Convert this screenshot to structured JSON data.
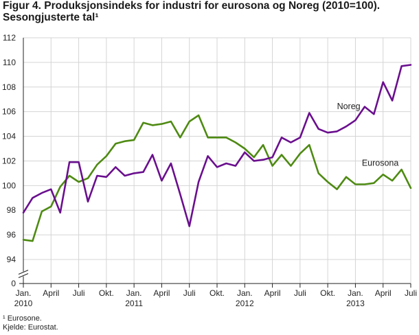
{
  "chart_data": {
    "type": "line",
    "title": "Figur 4. Produksjonsindeks for industri for eurosona og Noreg (2010=100).",
    "subtitle": "Sesongjusterte tal¹",
    "xlabel": "",
    "ylabel": "",
    "ylim": [
      0,
      112
    ],
    "axis_break": [
      0,
      94
    ],
    "yticks": [
      0,
      94,
      96,
      98,
      100,
      102,
      104,
      106,
      108,
      110,
      112
    ],
    "grid": true,
    "x_tick_labels": [
      {
        "label": "Jan.",
        "year": "2010",
        "index": 0
      },
      {
        "label": "April",
        "year": "",
        "index": 3
      },
      {
        "label": "Juli",
        "year": "",
        "index": 6
      },
      {
        "label": "Okt.",
        "year": "",
        "index": 9
      },
      {
        "label": "Jan.",
        "year": "2011",
        "index": 12
      },
      {
        "label": "April",
        "year": "",
        "index": 15
      },
      {
        "label": "Juli",
        "year": "",
        "index": 18
      },
      {
        "label": "Okt.",
        "year": "",
        "index": 21
      },
      {
        "label": "Jan.",
        "year": "2012",
        "index": 24
      },
      {
        "label": "April",
        "year": "",
        "index": 27
      },
      {
        "label": "Juli",
        "year": "",
        "index": 30
      },
      {
        "label": "Okt.",
        "year": "",
        "index": 33
      },
      {
        "label": "Jan.",
        "year": "2013",
        "index": 36
      },
      {
        "label": "April",
        "year": "",
        "index": 39
      },
      {
        "label": "Juli",
        "year": "",
        "index": 42
      }
    ],
    "series": [
      {
        "name": "Noreg",
        "color": "#6a0f8e",
        "values": [
          97.8,
          99.0,
          99.4,
          99.7,
          97.8,
          101.9,
          101.9,
          98.7,
          100.8,
          100.7,
          101.5,
          100.8,
          101.0,
          101.1,
          102.5,
          100.4,
          101.8,
          99.3,
          96.7,
          100.3,
          102.4,
          101.5,
          101.8,
          101.6,
          102.7,
          102.0,
          102.1,
          102.3,
          103.9,
          103.5,
          103.9,
          105.9,
          104.6,
          104.3,
          104.4,
          104.8,
          105.3,
          106.4,
          105.8,
          108.4,
          106.9,
          109.7,
          109.8
        ]
      },
      {
        "name": "Eurosona",
        "color": "#4e8a12",
        "values": [
          95.6,
          95.5,
          97.9,
          98.3,
          99.9,
          100.8,
          100.3,
          100.6,
          101.7,
          102.4,
          103.4,
          103.6,
          103.7,
          105.1,
          104.9,
          105.0,
          105.2,
          103.9,
          105.2,
          105.7,
          103.9,
          103.9,
          103.9,
          103.5,
          103.0,
          102.3,
          103.3,
          101.6,
          102.5,
          101.6,
          102.6,
          103.3,
          101.0,
          100.3,
          99.7,
          100.7,
          100.1,
          100.1,
          100.2,
          100.9,
          100.4,
          101.3,
          99.8
        ]
      }
    ]
  },
  "footnotes": {
    "note1": "¹ Eurosone.",
    "source": "Kjelde: Eurostat."
  }
}
